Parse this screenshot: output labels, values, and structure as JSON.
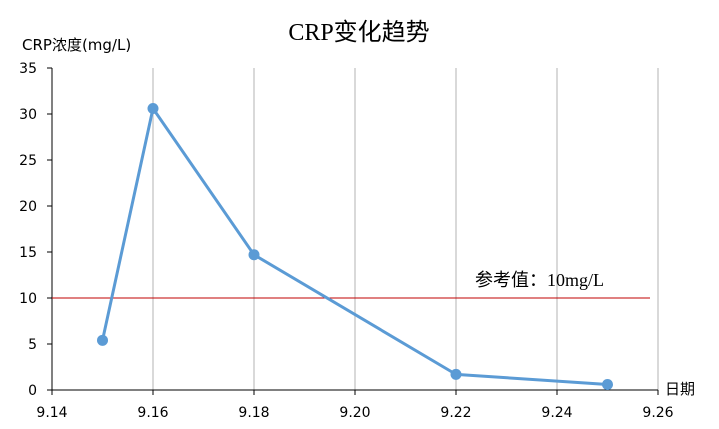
{
  "chart_data": {
    "type": "scatter",
    "title": "CRP变化趋势",
    "ylabel": "CRP浓度(mg/L)",
    "xlabel": "日期",
    "xlim": [
      9.14,
      9.26
    ],
    "ylim": [
      0,
      35
    ],
    "x_ticks": [
      "9.14",
      "9.16",
      "9.18",
      "9.20",
      "9.22",
      "9.24",
      "9.26"
    ],
    "y_ticks": [
      "0",
      "5",
      "10",
      "15",
      "20",
      "25",
      "30",
      "35"
    ],
    "grid": "vertical",
    "series": [
      {
        "color": "#5b9bd5",
        "points": [
          {
            "x": 9.15,
            "y": 5.4
          },
          {
            "x": 9.16,
            "y": 30.6
          },
          {
            "x": 9.18,
            "y": 14.7
          },
          {
            "x": 9.22,
            "y": 1.7
          },
          {
            "x": 9.25,
            "y": 0.6
          }
        ]
      }
    ],
    "reference_line": {
      "y": 10,
      "label": "参考值：10mg/L",
      "color": "#c00000"
    }
  }
}
